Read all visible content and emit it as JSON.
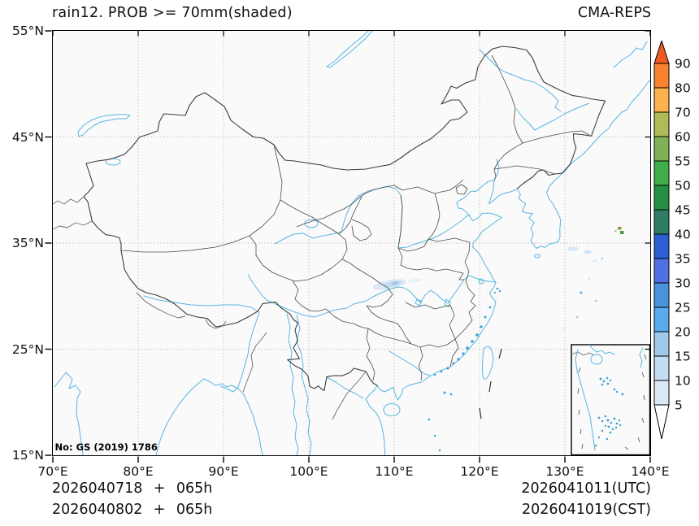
{
  "header": {
    "title": "rain12. PROB >= 70mm(shaded)",
    "model": "CMA-REPS"
  },
  "axes": {
    "x_ticks": [
      "70°E",
      "80°E",
      "90°E",
      "100°E",
      "110°E",
      "120°E",
      "130°E",
      "140°E"
    ],
    "y_ticks_top_to_bottom": [
      "55°N",
      "45°N",
      "35°N",
      "25°N",
      "15°N"
    ]
  },
  "map": {
    "license": "No: GS (2019) 1786",
    "variable": "12h rain probability >= 70mm",
    "shading_unit": "%"
  },
  "colorbar": {
    "tick_labels": [
      "90",
      "80",
      "70",
      "60",
      "55",
      "50",
      "45",
      "40",
      "35",
      "30",
      "25",
      "20",
      "15",
      "10",
      "5"
    ],
    "colors_top_to_bottom": [
      "#ee5c23",
      "#f8822d",
      "#fcb04e",
      "#b2b957",
      "#7fb257",
      "#3fae4b",
      "#259043",
      "#2e7d64",
      "#2c5fd1",
      "#5170e6",
      "#4b93da",
      "#57aaeb",
      "#a0c8ea",
      "#c4dbf1",
      "#dbe8f6",
      "#ffffff"
    ]
  },
  "footer": {
    "init_utc": "2026040718 + 065h",
    "init_cst": "2026040802 + 065h",
    "valid_utc": "2026041011(UTC)",
    "valid_cst": "2026041019(CST)"
  },
  "colors": {
    "coast_river": "#58b6e2",
    "border_dark": "#3c3c3c",
    "grid": "#c3c3c3"
  }
}
